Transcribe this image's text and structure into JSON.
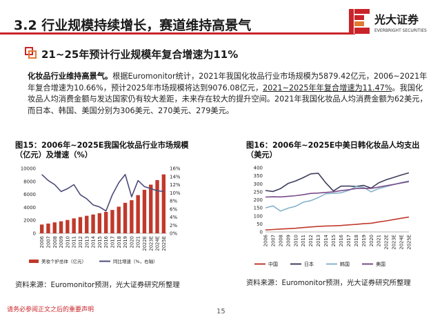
{
  "header": {
    "title": "3.2 行业规模持续增长，赛道维持高景气",
    "logo_cn": "光大证券",
    "logo_en": "EVERBRIGHT SECURITIES",
    "accent": "#c9242a"
  },
  "section": {
    "subtitle": "21~25年预计行业规模年复合增速为11%",
    "bullet_icon": "square-bullet-icon"
  },
  "paragraph": {
    "lead": "化妆品行业维持高景气。",
    "text1": "根据Euromonitor统计，2021年我国化妆品行业市场规模为5879.42亿元，2006~2021年年复合增速为10.66%，预计2025年市场规模将达到9076.08亿元，",
    "underlined": "2021~2025年年复合增速为11.47%",
    "text2": "。我国化妆品人均消费金额与发达国家仍有较大差距，未来存在较大的提升空间。2021年我国化妆品人均消费金额为62美元，而日本、韩国、美国分别为306美元、270美元、279美元。"
  },
  "figure15": {
    "title": "图15：2006年~2025E我国化妆品行业市场规模（亿元）及增速（%）",
    "source": "资料来源：Euromonitor预测，光大证券研究所整理"
  },
  "figure16": {
    "title": "图16：2006年~2025E中美日韩化妆品人均支出（美元）",
    "source": "资料来源：Euromonitor预测，光大证券研究所整理"
  },
  "footer": {
    "note": "请务必参阅正文之后的重要声明",
    "page": "15"
  },
  "chart_data": [
    {
      "type": "bar",
      "categories": [
        "2006",
        "2007",
        "2008",
        "2009",
        "2010",
        "2011",
        "2012",
        "2013",
        "2014",
        "2015",
        "2016",
        "2017",
        "2018",
        "2019",
        "2020",
        "2021",
        "2022E",
        "2023E",
        "2024E",
        "2025E"
      ],
      "series": [
        {
          "name": "美妆个护总体（亿元）",
          "type": "bar",
          "axis": "left",
          "color": "#c0392b",
          "values": [
            1350,
            1500,
            1680,
            1850,
            2050,
            2300,
            2500,
            2700,
            2900,
            3100,
            3300,
            3600,
            4100,
            4700,
            5100,
            5879.42,
            6700,
            7500,
            8200,
            9076.08
          ]
        },
        {
          "name": "同比增速（%，右轴）",
          "type": "line",
          "axis": "right",
          "color": "#4a4a7a",
          "values": [
            14.5,
            13.0,
            12.0,
            10.3,
            11.0,
            12.0,
            9.5,
            8.5,
            7.0,
            6.5,
            5.5,
            9.5,
            12.5,
            14.5,
            9.0,
            13.0,
            11.5,
            11.0,
            10.5,
            10.3
          ]
        }
      ],
      "ylim_left": [
        0,
        10000
      ],
      "left_ticks": [
        "0",
        "2000",
        "4000",
        "6000",
        "8000",
        "10000"
      ],
      "ylim_right": [
        0,
        16
      ],
      "right_ticks": [
        "0%",
        "2%",
        "4%",
        "6%",
        "8%",
        "10%",
        "12%",
        "14%",
        "16%"
      ],
      "legend": "bottom"
    },
    {
      "type": "line",
      "categories": [
        "2006",
        "2007",
        "2008",
        "2009",
        "2010",
        "2011",
        "2012",
        "2013",
        "2014",
        "2015",
        "2016",
        "2017",
        "2018",
        "2019",
        "2020",
        "2021",
        "2022E",
        "2023E",
        "2024E",
        "2025E"
      ],
      "series": [
        {
          "name": "中国",
          "color": "#c0392b",
          "values": [
            12,
            15,
            18,
            20,
            23,
            27,
            31,
            34,
            37,
            38,
            40,
            44,
            47,
            51,
            54,
            62,
            69,
            77,
            85,
            93
          ]
        },
        {
          "name": "日本",
          "color": "#3c3c5a",
          "values": [
            258,
            252,
            270,
            302,
            318,
            338,
            362,
            365,
            305,
            255,
            285,
            286,
            283,
            290,
            273,
            306,
            325,
            340,
            355,
            368
          ]
        },
        {
          "name": "韩国",
          "color": "#86b3cc",
          "values": [
            150,
            162,
            130,
            148,
            160,
            185,
            195,
            214,
            238,
            240,
            244,
            258,
            282,
            278,
            250,
            270,
            282,
            295,
            308,
            318
          ]
        },
        {
          "name": "美国",
          "color": "#7a4a8a",
          "values": [
            217,
            219,
            218,
            222,
            226,
            232,
            240,
            242,
            246,
            250,
            257,
            263,
            270,
            272,
            271,
            279,
            288,
            296,
            305,
            313
          ]
        }
      ],
      "ylim": [
        0,
        400
      ],
      "y_ticks": [
        "0",
        "50",
        "100",
        "150",
        "200",
        "250",
        "300",
        "350",
        "400"
      ],
      "legend": "bottom"
    }
  ]
}
